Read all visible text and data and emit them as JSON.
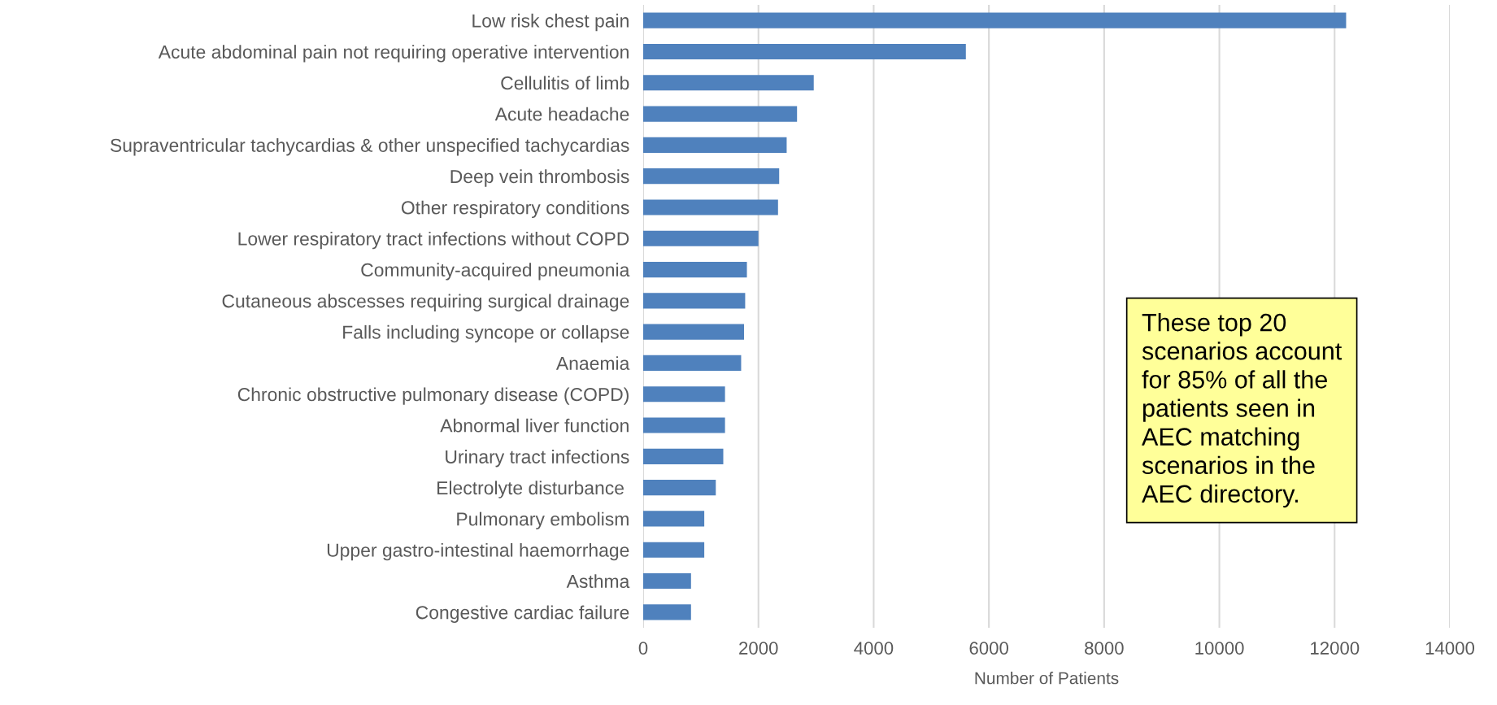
{
  "chart_data": {
    "type": "bar",
    "orientation": "horizontal",
    "xlabel": "Number of Patients",
    "categories": [
      "Low risk chest pain",
      "Acute abdominal pain not requiring operative intervention",
      "Cellulitis of limb",
      "Acute headache",
      "Supraventricular tachycardias & other unspecified tachycardias",
      "Deep vein thrombosis",
      "Other respiratory conditions",
      "Lower respiratory tract infections without COPD",
      "Community-acquired pneumonia",
      "Cutaneous abscesses requiring surgical drainage",
      "Falls including syncope or collapse",
      "Anaemia",
      "Chronic obstructive pulmonary disease (COPD)",
      "Abnormal liver function",
      "Urinary tract infections",
      "Electrolyte disturbance ",
      "Pulmonary embolism",
      "Upper gastro-intestinal haemorrhage",
      "Asthma",
      "Congestive cardiac failure"
    ],
    "values": [
      12200,
      5600,
      2960,
      2670,
      2490,
      2360,
      2340,
      2000,
      1800,
      1770,
      1750,
      1700,
      1420,
      1420,
      1390,
      1260,
      1060,
      1060,
      830,
      830
    ],
    "color": "#4f81bd",
    "xlim": [
      0,
      14000
    ],
    "xticks": [
      0,
      2000,
      4000,
      6000,
      8000,
      10000,
      12000,
      14000
    ],
    "grid": "x",
    "annotations": [
      "These top 20\nscenarios account\nfor 85% of all the\npatients seen in\nAEC matching\nscenarios in the\nAEC directory."
    ]
  }
}
